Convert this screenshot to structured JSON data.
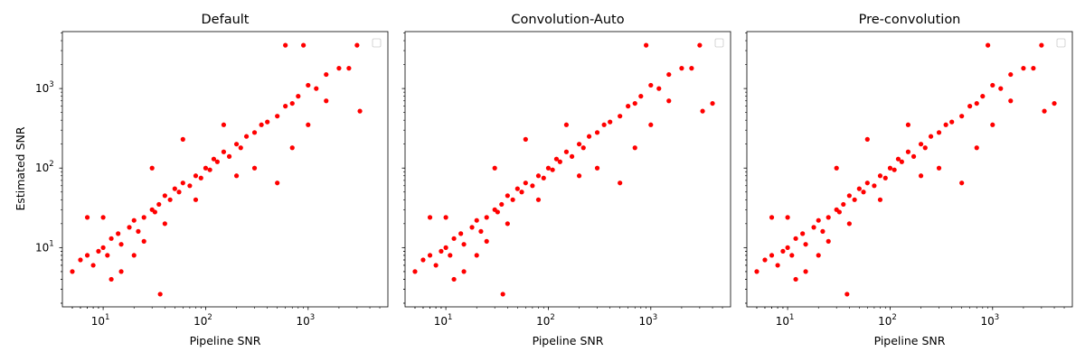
{
  "chart_data": [
    {
      "type": "scatter",
      "title": "Default",
      "xlabel": "Pipeline SNR",
      "ylabel": "Estimated SNR",
      "xscale": "log",
      "yscale": "log",
      "xlim": [
        4,
        6000
      ],
      "ylim": [
        1.8,
        5200
      ],
      "legend": "top-right (empty)",
      "marker_color": "#ff0000",
      "series": [
        {
          "points": [
            [
              5,
              5
            ],
            [
              6,
              7
            ],
            [
              7,
              8
            ],
            [
              8,
              6
            ],
            [
              9,
              9
            ],
            [
              10,
              10
            ],
            [
              11,
              8
            ],
            [
              12,
              13
            ],
            [
              14,
              15
            ],
            [
              15,
              11
            ],
            [
              18,
              18
            ],
            [
              20,
              22
            ],
            [
              22,
              16
            ],
            [
              25,
              24
            ],
            [
              30,
              30
            ],
            [
              32,
              28
            ],
            [
              35,
              35
            ],
            [
              40,
              45
            ],
            [
              45,
              40
            ],
            [
              50,
              55
            ],
            [
              55,
              50
            ],
            [
              60,
              65
            ],
            [
              70,
              60
            ],
            [
              80,
              80
            ],
            [
              90,
              75
            ],
            [
              100,
              100
            ],
            [
              110,
              95
            ],
            [
              120,
              130
            ],
            [
              130,
              120
            ],
            [
              150,
              160
            ],
            [
              170,
              140
            ],
            [
              200,
              200
            ],
            [
              220,
              180
            ],
            [
              250,
              250
            ],
            [
              300,
              280
            ],
            [
              350,
              350
            ],
            [
              400,
              380
            ],
            [
              500,
              450
            ],
            [
              600,
              600
            ],
            [
              700,
              650
            ],
            [
              800,
              800
            ],
            [
              1000,
              1100
            ],
            [
              1200,
              1000
            ],
            [
              1500,
              1500
            ],
            [
              2000,
              1800
            ],
            [
              2500,
              1800
            ],
            [
              3000,
              3500
            ],
            [
              7,
              24
            ],
            [
              10,
              24
            ],
            [
              12,
              4
            ],
            [
              15,
              5
            ],
            [
              20,
              8
            ],
            [
              25,
              12
            ],
            [
              30,
              100
            ],
            [
              36,
              2.6
            ],
            [
              40,
              20
            ],
            [
              60,
              230
            ],
            [
              80,
              40
            ],
            [
              150,
              350
            ],
            [
              200,
              80
            ],
            [
              300,
              100
            ],
            [
              500,
              65
            ],
            [
              700,
              180
            ],
            [
              1000,
              350
            ],
            [
              1500,
              700
            ],
            [
              3200,
              520
            ],
            [
              600,
              3500
            ],
            [
              900,
              3500
            ]
          ]
        }
      ]
    },
    {
      "type": "scatter",
      "title": "Convolution-Auto",
      "xlabel": "Pipeline SNR",
      "ylabel": "",
      "xscale": "log",
      "yscale": "log",
      "xlim": [
        4,
        6000
      ],
      "ylim": [
        1.8,
        5200
      ],
      "legend": "top-right (empty)",
      "marker_color": "#ff0000",
      "series": [
        {
          "points": [
            [
              5,
              5
            ],
            [
              6,
              7
            ],
            [
              7,
              8
            ],
            [
              8,
              6
            ],
            [
              9,
              9
            ],
            [
              10,
              10
            ],
            [
              11,
              8
            ],
            [
              12,
              13
            ],
            [
              14,
              15
            ],
            [
              15,
              11
            ],
            [
              18,
              18
            ],
            [
              20,
              22
            ],
            [
              22,
              16
            ],
            [
              25,
              24
            ],
            [
              30,
              30
            ],
            [
              32,
              28
            ],
            [
              35,
              35
            ],
            [
              40,
              45
            ],
            [
              45,
              40
            ],
            [
              50,
              55
            ],
            [
              55,
              50
            ],
            [
              60,
              65
            ],
            [
              70,
              60
            ],
            [
              80,
              80
            ],
            [
              90,
              75
            ],
            [
              100,
              100
            ],
            [
              110,
              95
            ],
            [
              120,
              130
            ],
            [
              130,
              120
            ],
            [
              150,
              160
            ],
            [
              170,
              140
            ],
            [
              200,
              200
            ],
            [
              220,
              180
            ],
            [
              250,
              250
            ],
            [
              300,
              280
            ],
            [
              350,
              350
            ],
            [
              400,
              380
            ],
            [
              500,
              450
            ],
            [
              600,
              600
            ],
            [
              700,
              650
            ],
            [
              800,
              800
            ],
            [
              1000,
              1100
            ],
            [
              1200,
              1000
            ],
            [
              1500,
              1500
            ],
            [
              2000,
              1800
            ],
            [
              2500,
              1800
            ],
            [
              3000,
              3500
            ],
            [
              7,
              24
            ],
            [
              10,
              24
            ],
            [
              12,
              4
            ],
            [
              15,
              5
            ],
            [
              20,
              8
            ],
            [
              25,
              12
            ],
            [
              30,
              100
            ],
            [
              36,
              2.6
            ],
            [
              40,
              20
            ],
            [
              60,
              230
            ],
            [
              80,
              40
            ],
            [
              150,
              350
            ],
            [
              200,
              80
            ],
            [
              300,
              100
            ],
            [
              500,
              65
            ],
            [
              700,
              180
            ],
            [
              1000,
              350
            ],
            [
              1500,
              700
            ],
            [
              3200,
              520
            ],
            [
              4000,
              650
            ],
            [
              900,
              3500
            ]
          ]
        }
      ]
    },
    {
      "type": "scatter",
      "title": "Pre-convolution",
      "xlabel": "Pipeline SNR",
      "ylabel": "",
      "xscale": "log",
      "yscale": "log",
      "xlim": [
        4,
        6000
      ],
      "ylim": [
        1.8,
        5200
      ],
      "legend": "top-right (empty)",
      "marker_color": "#ff0000",
      "series": [
        {
          "points": [
            [
              5,
              5
            ],
            [
              6,
              7
            ],
            [
              7,
              8
            ],
            [
              8,
              6
            ],
            [
              9,
              9
            ],
            [
              10,
              10
            ],
            [
              11,
              8
            ],
            [
              12,
              13
            ],
            [
              14,
              15
            ],
            [
              15,
              11
            ],
            [
              18,
              18
            ],
            [
              20,
              22
            ],
            [
              22,
              16
            ],
            [
              25,
              24
            ],
            [
              30,
              30
            ],
            [
              32,
              28
            ],
            [
              35,
              35
            ],
            [
              40,
              45
            ],
            [
              45,
              40
            ],
            [
              50,
              55
            ],
            [
              55,
              50
            ],
            [
              60,
              65
            ],
            [
              70,
              60
            ],
            [
              80,
              80
            ],
            [
              90,
              75
            ],
            [
              100,
              100
            ],
            [
              110,
              95
            ],
            [
              120,
              130
            ],
            [
              130,
              120
            ],
            [
              150,
              160
            ],
            [
              170,
              140
            ],
            [
              200,
              200
            ],
            [
              220,
              180
            ],
            [
              250,
              250
            ],
            [
              300,
              280
            ],
            [
              350,
              350
            ],
            [
              400,
              380
            ],
            [
              500,
              450
            ],
            [
              600,
              600
            ],
            [
              700,
              650
            ],
            [
              800,
              800
            ],
            [
              1000,
              1100
            ],
            [
              1200,
              1000
            ],
            [
              1500,
              1500
            ],
            [
              2000,
              1800
            ],
            [
              2500,
              1800
            ],
            [
              3000,
              3500
            ],
            [
              7,
              24
            ],
            [
              10,
              24
            ],
            [
              12,
              4
            ],
            [
              15,
              5
            ],
            [
              20,
              8
            ],
            [
              25,
              12
            ],
            [
              30,
              100
            ],
            [
              38,
              2.6
            ],
            [
              40,
              20
            ],
            [
              60,
              230
            ],
            [
              80,
              40
            ],
            [
              150,
              350
            ],
            [
              200,
              80
            ],
            [
              300,
              100
            ],
            [
              500,
              65
            ],
            [
              700,
              180
            ],
            [
              1000,
              350
            ],
            [
              1500,
              700
            ],
            [
              3200,
              520
            ],
            [
              4000,
              650
            ],
            [
              900,
              3500
            ]
          ]
        }
      ]
    }
  ],
  "ticks": {
    "x": [
      {
        "value": 10,
        "base": "10",
        "exp": "1"
      },
      {
        "value": 100,
        "base": "10",
        "exp": "2"
      },
      {
        "value": 1000,
        "base": "10",
        "exp": "3"
      }
    ],
    "y": [
      {
        "value": 10,
        "base": "10",
        "exp": "1"
      },
      {
        "value": 100,
        "base": "10",
        "exp": "2"
      },
      {
        "value": 1000,
        "base": "10",
        "exp": "3"
      }
    ]
  }
}
